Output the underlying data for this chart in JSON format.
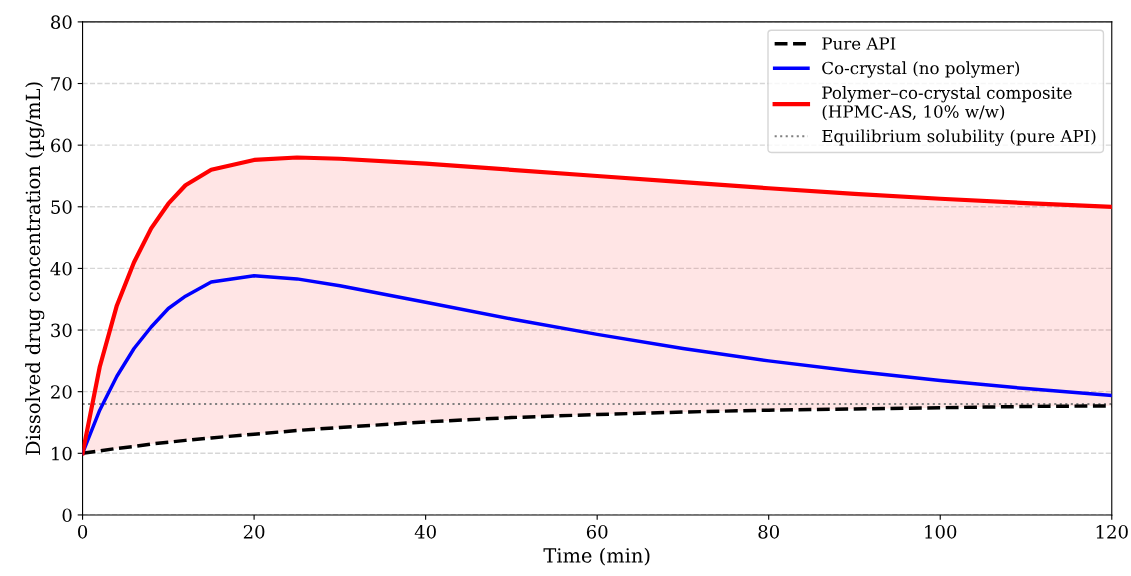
{
  "chart_data": {
    "type": "line",
    "xlabel": "Time (min)",
    "ylabel": "Dissolved drug concentration (µg/mL)",
    "xlim": [
      0,
      120
    ],
    "xticks": [
      0,
      20,
      40,
      60,
      80,
      100,
      120
    ],
    "ylim": [
      0,
      80
    ],
    "yticks": [
      0,
      10,
      20,
      30,
      40,
      50,
      60,
      70,
      80
    ],
    "grid": "y",
    "legend": "top right",
    "marker": "none",
    "x": [
      0,
      2,
      4,
      6,
      8,
      10,
      12,
      15,
      20,
      25,
      30,
      40,
      50,
      60,
      70,
      80,
      90,
      100,
      110,
      120
    ],
    "series": [
      {
        "name": "Pure API",
        "color": "#000000",
        "line_style": "dashed",
        "values": [
          10,
          10.4,
          10.8,
          11.1,
          11.5,
          11.8,
          12.1,
          12.5,
          13.1,
          13.7,
          14.2,
          15.1,
          15.8,
          16.3,
          16.7,
          17.0,
          17.2,
          17.4,
          17.6,
          17.7
        ]
      },
      {
        "name": "Co-crystal (no polymer)",
        "color": "#0000ff",
        "line_style": "solid",
        "values": [
          10,
          17,
          22.5,
          27,
          30.5,
          33.5,
          35.5,
          37.8,
          38.8,
          38.3,
          37.2,
          34.5,
          31.8,
          29.3,
          27,
          25,
          23.3,
          21.8,
          20.5,
          19.4
        ]
      },
      {
        "name": "Polymer–co-crystal composite\n(HPMC-AS, 10% w/w)",
        "color": "#ff0000",
        "line_style": "solid",
        "values": [
          10,
          24,
          34,
          41,
          46.5,
          50.5,
          53.5,
          56,
          57.6,
          58,
          57.8,
          57,
          56,
          55,
          54,
          53,
          52.1,
          51.3,
          50.6,
          50
        ],
        "lower": [
          10,
          10.4,
          10.8,
          11.1,
          11.5,
          11.8,
          12.1,
          12.5,
          13.1,
          13.7,
          14.2,
          15.1,
          15.8,
          16.3,
          16.7,
          17.0,
          17.2,
          17.4,
          17.6,
          17.7
        ],
        "upper": [
          10,
          24,
          34,
          41,
          46.5,
          50.5,
          53.5,
          56,
          57.6,
          58,
          57.8,
          57,
          56,
          55,
          54,
          53,
          52.1,
          51.3,
          50.6,
          50
        ]
      }
    ],
    "ref_lines": [
      {
        "axis": "y",
        "value": 18,
        "label": "Equilibrium solubility (pure API)",
        "color": "#808080",
        "line_style": "dotted"
      }
    ]
  }
}
